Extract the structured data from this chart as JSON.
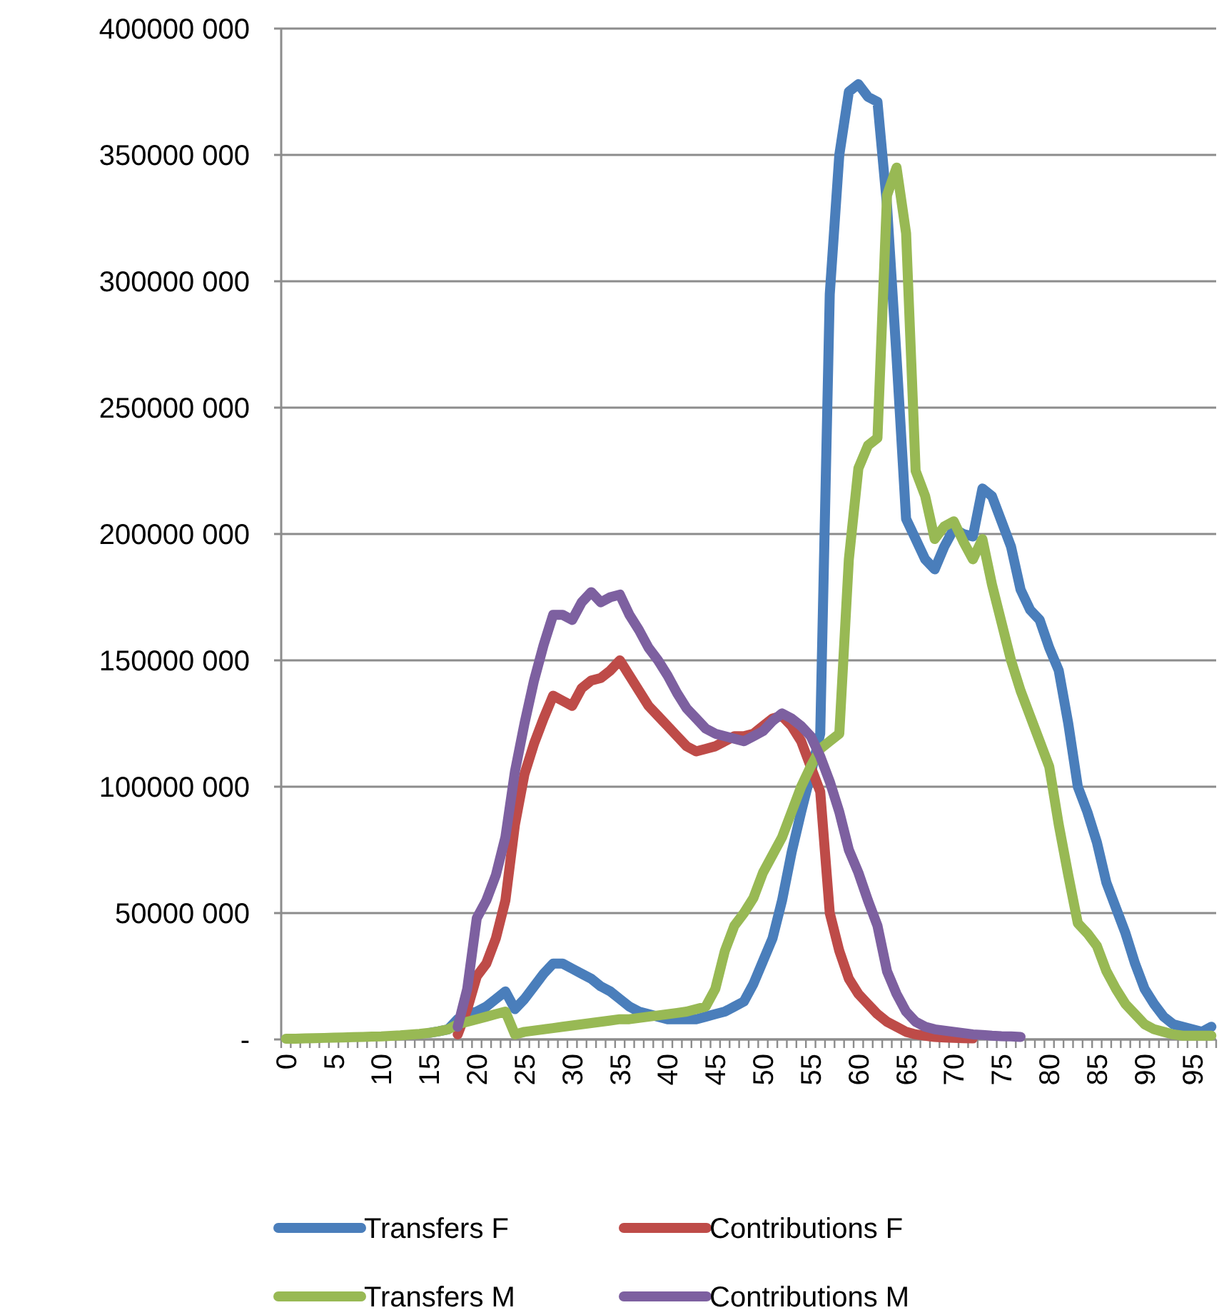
{
  "chart_data": {
    "type": "line",
    "categories": [
      "0",
      null,
      null,
      null,
      null,
      "5",
      null,
      null,
      null,
      null,
      "10",
      null,
      null,
      null,
      null,
      "15",
      null,
      null,
      null,
      null,
      "20",
      null,
      null,
      null,
      null,
      "25",
      null,
      null,
      null,
      null,
      "30",
      null,
      null,
      null,
      null,
      "35",
      null,
      null,
      null,
      null,
      "40",
      null,
      null,
      null,
      null,
      "45",
      null,
      null,
      null,
      null,
      "50",
      null,
      null,
      null,
      null,
      "55",
      null,
      null,
      null,
      null,
      "60",
      null,
      null,
      null,
      null,
      "65",
      null,
      null,
      null,
      null,
      "70",
      null,
      null,
      null,
      null,
      "75",
      null,
      null,
      null,
      null,
      "80",
      null,
      null,
      null,
      null,
      "85",
      null,
      null,
      null,
      null,
      "90",
      null,
      null,
      null,
      null,
      "95",
      null,
      null
    ],
    "ylim": [
      0,
      400000000
    ],
    "yticks": [
      {
        "value": 0,
        "label": "-"
      },
      {
        "value": 50000000,
        "label": "50000 000"
      },
      {
        "value": 100000000,
        "label": "100000 000"
      },
      {
        "value": 150000000,
        "label": "150000 000"
      },
      {
        "value": 200000000,
        "label": "200000 000"
      },
      {
        "value": 250000000,
        "label": "250000 000"
      },
      {
        "value": 300000000,
        "label": "300000 000"
      },
      {
        "value": 350000000,
        "label": "350000 000"
      },
      {
        "value": 400000000,
        "label": "400000 000"
      }
    ],
    "grid": "y",
    "legend": "bottom",
    "line_style": "solid",
    "marker": "none",
    "series": [
      {
        "name": "Transfers F",
        "color": "#4a7ebb",
        "values": [
          null,
          null,
          null,
          null,
          null,
          null,
          null,
          null,
          null,
          null,
          null,
          null,
          null,
          null,
          null,
          2600000,
          3200000,
          4000000,
          8000000,
          10000000,
          11000000,
          13000000,
          16000000,
          19000000,
          12000000,
          16000000,
          21000000,
          26000000,
          30000000,
          30000000,
          28000000,
          26000000,
          24000000,
          21000000,
          19000000,
          16000000,
          13000000,
          11000000,
          10000000,
          9000000,
          8000000,
          8000000,
          8000000,
          8000000,
          9000000,
          10000000,
          11000000,
          13000000,
          15000000,
          22000000,
          31000000,
          40000000,
          55000000,
          74000000,
          90000000,
          105000000,
          121000000,
          295000000,
          350000000,
          375000000,
          378000000,
          373000000,
          371000000,
          330000000,
          270000000,
          206000000,
          198000000,
          190000000,
          186000000,
          195000000,
          202000000,
          200000000,
          199000000,
          218000000,
          215000000,
          205000000,
          195000000,
          178000000,
          170000000,
          166000000,
          155000000,
          146000000,
          125000000,
          100000000,
          90000000,
          78000000,
          62000000,
          52000000,
          42000000,
          30000000,
          20000000,
          14000000,
          9000000,
          6000000,
          5000000,
          4000000,
          3000000,
          5000000
        ]
      },
      {
        "name": "Contributions F",
        "color": "#be4b48",
        "values": [
          null,
          null,
          null,
          null,
          null,
          null,
          null,
          null,
          null,
          null,
          null,
          null,
          null,
          null,
          null,
          null,
          null,
          null,
          2000000,
          12000000,
          25000000,
          30000000,
          40000000,
          55000000,
          85000000,
          105000000,
          117000000,
          127000000,
          136000000,
          134000000,
          132000000,
          139000000,
          142000000,
          143000000,
          146000000,
          150000000,
          144000000,
          138000000,
          132000000,
          128000000,
          124000000,
          120000000,
          116000000,
          114000000,
          115000000,
          116000000,
          118000000,
          120000000,
          120000000,
          121000000,
          124000000,
          127000000,
          128000000,
          124000000,
          118000000,
          108000000,
          98000000,
          50000000,
          35000000,
          24000000,
          18000000,
          14000000,
          10000000,
          7000000,
          5000000,
          3000000,
          2000000,
          1500000,
          1000000,
          800000,
          600000,
          500000,
          400000,
          null,
          null,
          null,
          null,
          null,
          null,
          null,
          null,
          null,
          null,
          null,
          null,
          null,
          null,
          null,
          null,
          null,
          null,
          null,
          null,
          null,
          null,
          null,
          null,
          null
        ]
      },
      {
        "name": "Transfers M",
        "color": "#98b954",
        "values": [
          300000,
          300000,
          400000,
          500000,
          600000,
          700000,
          800000,
          900000,
          1000000,
          1100000,
          1200000,
          1400000,
          1600000,
          1900000,
          2200000,
          2600000,
          3200000,
          4000000,
          6000000,
          7000000,
          8000000,
          9000000,
          10000000,
          11000000,
          2000000,
          3000000,
          3500000,
          4000000,
          4500000,
          5000000,
          5500000,
          6000000,
          6500000,
          7000000,
          7500000,
          8000000,
          8000000,
          8500000,
          9000000,
          9500000,
          10000000,
          10500000,
          11000000,
          12000000,
          13000000,
          20000000,
          35000000,
          45000000,
          50000000,
          56000000,
          66000000,
          73000000,
          80000000,
          90000000,
          100000000,
          108000000,
          115000000,
          118000000,
          121000000,
          190000000,
          226000000,
          235000000,
          238000000,
          334000000,
          345000000,
          319000000,
          225000000,
          215000000,
          198000000,
          203000000,
          205000000,
          197000000,
          190000000,
          198000000,
          180000000,
          165000000,
          150000000,
          138000000,
          128000000,
          118000000,
          108000000,
          85000000,
          65000000,
          46000000,
          42000000,
          37000000,
          27000000,
          20000000,
          14000000,
          10000000,
          6000000,
          4000000,
          3000000,
          2000000,
          1500000,
          1500000,
          1500000,
          1500000
        ]
      },
      {
        "name": "Contributions M",
        "color": "#7d60a0",
        "values": [
          null,
          null,
          null,
          null,
          null,
          null,
          null,
          null,
          null,
          null,
          null,
          null,
          null,
          null,
          null,
          null,
          null,
          null,
          5000000,
          20000000,
          48000000,
          55000000,
          65000000,
          80000000,
          106000000,
          125000000,
          142000000,
          156000000,
          168000000,
          168000000,
          166000000,
          173000000,
          177000000,
          173000000,
          175000000,
          176000000,
          168000000,
          162000000,
          155000000,
          150000000,
          144000000,
          137000000,
          131000000,
          127000000,
          123000000,
          121000000,
          120000000,
          119000000,
          118000000,
          120000000,
          122000000,
          126000000,
          129000000,
          127000000,
          124000000,
          120000000,
          112000000,
          102000000,
          90000000,
          75000000,
          66000000,
          55000000,
          45000000,
          27000000,
          18000000,
          11000000,
          7000000,
          5000000,
          4000000,
          3500000,
          3000000,
          2500000,
          2000000,
          1800000,
          1500000,
          1300000,
          1200000,
          1000000,
          null,
          null,
          null,
          null,
          null,
          null,
          null,
          null,
          null,
          null,
          null,
          null,
          null,
          null,
          null,
          null,
          null,
          null,
          null,
          null
        ]
      }
    ]
  }
}
